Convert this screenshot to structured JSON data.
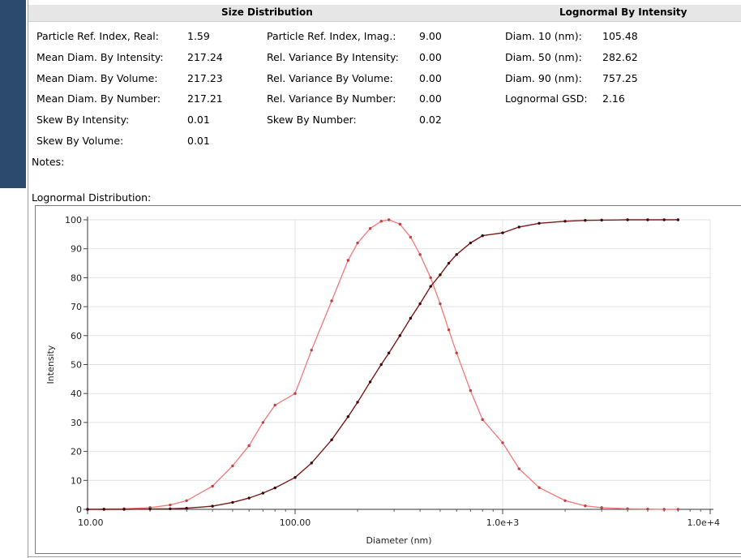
{
  "header": {
    "size_distribution": "Size Distribution",
    "lognormal_by_intensity": "Lognormal By Intensity"
  },
  "stats_col1": [
    {
      "label": "Particle Ref. Index, Real:",
      "value": "1.59"
    },
    {
      "label": "Mean Diam. By Intensity:",
      "value": "217.24"
    },
    {
      "label": "Mean Diam. By Volume:",
      "value": "217.23"
    },
    {
      "label": "Mean Diam. By Number:",
      "value": "217.21"
    },
    {
      "label": "Skew By Intensity:",
      "value": "0.01"
    },
    {
      "label": "Skew By Volume:",
      "value": "0.01"
    }
  ],
  "stats_col2": [
    {
      "label": "Particle Ref. Index, Imag.:",
      "value": "9.00"
    },
    {
      "label": "Rel. Variance By Intensity:",
      "value": "0.00"
    },
    {
      "label": "Rel. Variance By Volume:",
      "value": "0.00"
    },
    {
      "label": "Rel. Variance By Number:",
      "value": "0.00"
    },
    {
      "label": "Skew By Number:",
      "value": "0.02"
    }
  ],
  "stats_col3": [
    {
      "label": "Diam. 10 (nm):",
      "value": "105.48"
    },
    {
      "label": "Diam. 50 (nm):",
      "value": "282.62"
    },
    {
      "label": "Diam. 90 (nm):",
      "value": "757.25"
    },
    {
      "label": "Lognormal GSD:",
      "value": "2.16"
    }
  ],
  "notes_label": "Notes:",
  "chart_caption": "Lognormal Distribution:",
  "chart_data": {
    "type": "line",
    "xlabel": "Diameter (nm)",
    "ylabel": "Intensity",
    "x_scale": "log",
    "xlim": [
      10,
      10000
    ],
    "ylim": [
      0,
      100
    ],
    "x_tick_labels": [
      "10.00",
      "100.00",
      "1.0e+3",
      "1.0e+4"
    ],
    "x_tick_values": [
      10,
      100,
      1000,
      10000
    ],
    "y_ticks": [
      0,
      10,
      20,
      30,
      40,
      50,
      60,
      70,
      80,
      90,
      100
    ],
    "grid": true,
    "legend": "none",
    "colors": {
      "distribution": "#f08080",
      "cumulative": "#7a1a1a"
    },
    "x": [
      10,
      12,
      15,
      20,
      25,
      30,
      40,
      50,
      60,
      70,
      80,
      100,
      120,
      150,
      180,
      200,
      230,
      260,
      283,
      320,
      360,
      400,
      450,
      500,
      550,
      600,
      700,
      800,
      1000,
      1200,
      1500,
      2000,
      2500,
      3000,
      4000,
      5000,
      6000,
      7000
    ],
    "series": [
      {
        "values": [
          0,
          0.1,
          0.2,
          0.6,
          1.5,
          3,
          8,
          15,
          22,
          30,
          36,
          40,
          55,
          72,
          86,
          92,
          97,
          99.5,
          100,
          98.5,
          94,
          88,
          80,
          71,
          62,
          54,
          41,
          31,
          23,
          14,
          7.5,
          3,
          1.2,
          0.6,
          0.2,
          0.1,
          0,
          0
        ]
      },
      {
        "values": [
          0,
          0,
          0,
          0.1,
          0.2,
          0.4,
          1.1,
          2.4,
          3.9,
          5.6,
          7.4,
          11,
          16,
          24,
          32,
          37,
          44,
          50,
          54,
          60,
          66,
          71,
          77,
          81,
          85,
          88,
          92,
          94.5,
          95.5,
          97.5,
          98.8,
          99.5,
          99.8,
          99.9,
          100,
          100,
          100,
          100
        ]
      }
    ]
  }
}
